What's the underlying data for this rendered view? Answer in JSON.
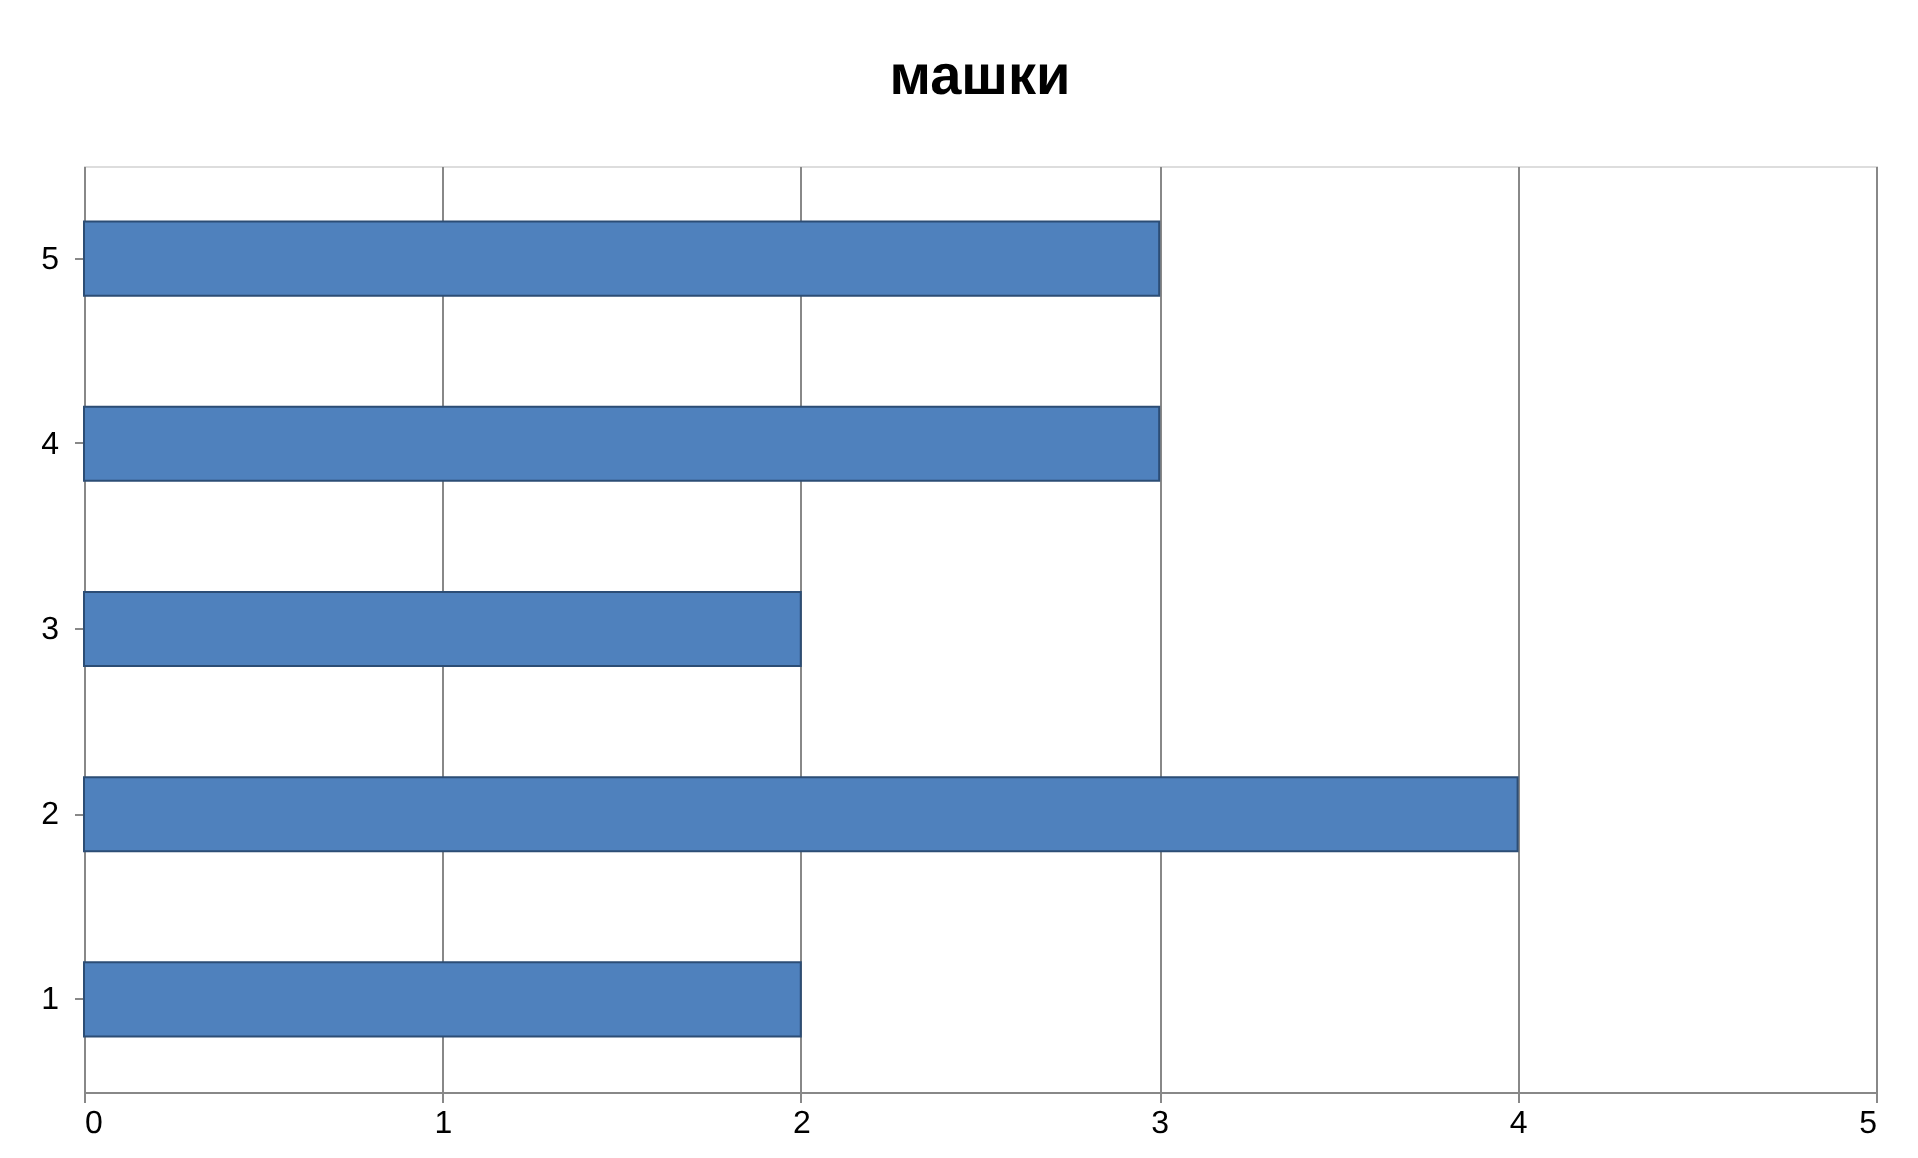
{
  "chart_data": {
    "type": "bar",
    "title": "машки",
    "orientation": "horizontal",
    "categories": [
      "5",
      "4",
      "3",
      "2",
      "1"
    ],
    "values": [
      3,
      3,
      2,
      4,
      2
    ],
    "color": "#4f81bd",
    "xlim": [
      0,
      5
    ],
    "xticks": [
      0,
      1,
      2,
      3,
      4,
      5
    ],
    "grid": "x"
  }
}
